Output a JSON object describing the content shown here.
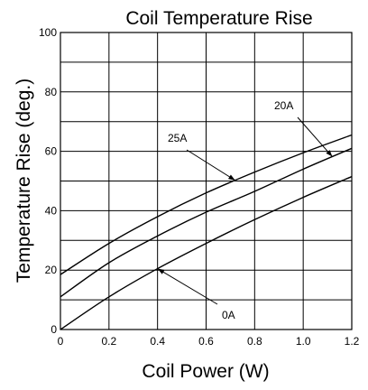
{
  "chart_data": {
    "type": "line",
    "title": "Coil Temperature Rise",
    "xlabel": "Coil Power (W)",
    "ylabel": "Temperature Rise (deg.)",
    "xlim": [
      0,
      1.2
    ],
    "ylim": [
      0,
      100
    ],
    "x_ticks": [
      0,
      0.2,
      0.4,
      0.6,
      0.8,
      1.0,
      1.2
    ],
    "x_tick_labels": [
      "0",
      "0.2",
      "0.4",
      "0.6",
      "0.8",
      "1.0",
      "1.2"
    ],
    "y_ticks": [
      0,
      20,
      40,
      60,
      80,
      100
    ],
    "y_tick_labels": [
      "0",
      "20",
      "40",
      "60",
      "80",
      "100"
    ],
    "grid": true,
    "x": [
      0,
      0.2,
      0.4,
      0.6,
      0.8,
      1.0,
      1.2
    ],
    "series": [
      {
        "name": "25A",
        "values": [
          18.5,
          29,
          38,
          46,
          53,
          59.5,
          65.5
        ]
      },
      {
        "name": "20A",
        "values": [
          11,
          22.5,
          31.5,
          39.5,
          46.5,
          54,
          61
        ]
      },
      {
        "name": "0A",
        "values": [
          0,
          11,
          20.5,
          29,
          37,
          44.5,
          51.5
        ]
      }
    ],
    "annotations": [
      {
        "text": "25A",
        "series": "25A",
        "at_x": 0.72
      },
      {
        "text": "20A",
        "series": "20A",
        "at_x": 1.12
      },
      {
        "text": "0A",
        "series": "0A",
        "at_x": 0.4
      }
    ]
  }
}
